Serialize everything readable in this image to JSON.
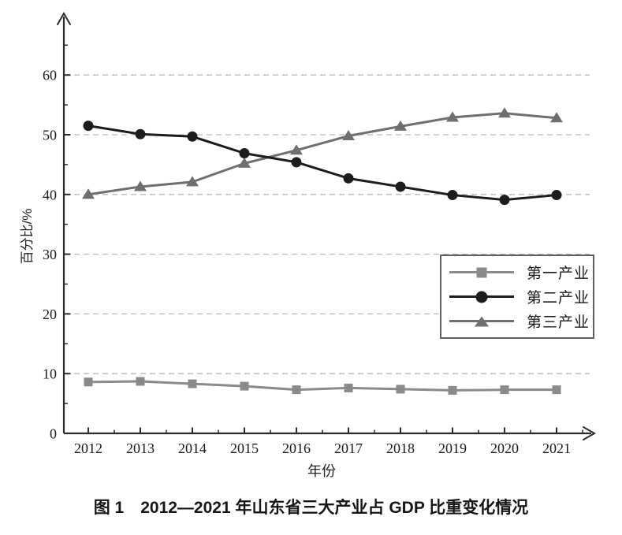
{
  "figure": {
    "caption": "图 1　2012—2021 年山东省三大产业占 GDP 比重变化情况"
  },
  "chart_data": {
    "type": "line",
    "title": "",
    "xlabel": "年份",
    "ylabel": "百分比/%",
    "x": [
      "2012",
      "2013",
      "2014",
      "2015",
      "2016",
      "2017",
      "2018",
      "2019",
      "2020",
      "2021"
    ],
    "yticks": [
      0,
      10,
      20,
      30,
      40,
      50,
      60
    ],
    "ylim": [
      0,
      65
    ],
    "grid": "horizontal-dashed",
    "grid_color": "#b9b9b9",
    "axis_color": "#2b2b2b",
    "legend_position": "inside-right",
    "series": [
      {
        "name": "第一产业",
        "marker": "square",
        "color": "#8a8a8a",
        "values": [
          8.6,
          8.7,
          8.3,
          7.9,
          7.3,
          7.6,
          7.4,
          7.2,
          7.3,
          7.3
        ]
      },
      {
        "name": "第二产业",
        "marker": "circle",
        "color": "#1c1c1c",
        "values": [
          51.5,
          50.1,
          49.7,
          46.9,
          45.4,
          42.7,
          41.3,
          39.9,
          39.1,
          39.9
        ]
      },
      {
        "name": "第三产业",
        "marker": "triangle",
        "color": "#6f6f6f",
        "values": [
          40.0,
          41.3,
          42.1,
          45.2,
          47.4,
          49.8,
          51.4,
          52.9,
          53.6,
          52.8
        ]
      }
    ]
  }
}
